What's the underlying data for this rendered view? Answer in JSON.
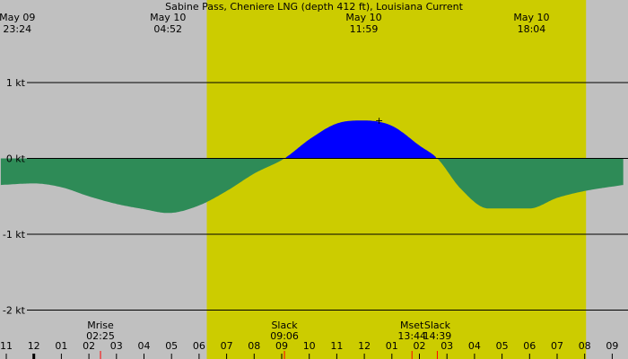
{
  "title": "Sabine Pass, Cheniere LNG (depth 412 ft), Louisiana Current",
  "colors": {
    "background": "#c0c0c0",
    "daylight": "#cccc00",
    "flood": "#0000ff",
    "ebb": "#2e8b57",
    "line": "#000000",
    "event_marker": "#ff0000"
  },
  "top_labels": [
    {
      "date": "May 09",
      "time": "23:24",
      "hour": -0.6
    },
    {
      "date": "May 10",
      "time": "04:52",
      "hour": 4.87
    },
    {
      "date": "May 10",
      "time": "11:59",
      "hour": 11.98
    },
    {
      "date": "May 10",
      "time": "18:04",
      "hour": 18.07
    }
  ],
  "y_ticks": [
    {
      "label": "1 kt",
      "value": 1
    },
    {
      "label": "0 kt",
      "value": 0
    },
    {
      "label": "-1 kt",
      "value": -1
    },
    {
      "label": "-2 kt",
      "value": -2
    }
  ],
  "x_ticks": [
    "11",
    "12",
    "01",
    "02",
    "03",
    "04",
    "05",
    "06",
    "07",
    "08",
    "09",
    "10",
    "11",
    "12",
    "01",
    "02",
    "03",
    "04",
    "05",
    "06",
    "07",
    "08",
    "09"
  ],
  "events": [
    {
      "name": "Mrise",
      "time": "02:25",
      "hour": 2.42
    },
    {
      "name": "Slack",
      "time": "09:06",
      "hour": 9.1
    },
    {
      "name": "Mset",
      "time": "13:44",
      "hour": 13.73
    },
    {
      "name": "Slack",
      "time": "14:39",
      "hour": 14.65
    }
  ],
  "chart_data": {
    "type": "area",
    "title": "Sabine Pass, Cheniere LNG (depth 412 ft), Louisiana Current",
    "x_unit": "hour of day (May 10)",
    "x_range": [
      -1.2,
      21.4
    ],
    "y_unit": "kt",
    "ylim": [
      -2.2,
      2.05
    ],
    "daylight_range": [
      6.28,
      20.05
    ],
    "x": [
      -1.2,
      0,
      1,
      2,
      3,
      4,
      4.87,
      6,
      7,
      8,
      9.1,
      10,
      11,
      11.98,
      13,
      14,
      14.65,
      15.5,
      16.5,
      18,
      19,
      20,
      21.4
    ],
    "values": [
      -0.35,
      -0.33,
      -0.38,
      -0.5,
      -0.6,
      -0.67,
      -0.72,
      -0.62,
      -0.43,
      -0.2,
      0,
      0.25,
      0.46,
      0.5,
      0.43,
      0.17,
      0,
      -0.4,
      -0.66,
      -0.66,
      -0.52,
      -0.43,
      -0.35
    ],
    "grid": true
  }
}
